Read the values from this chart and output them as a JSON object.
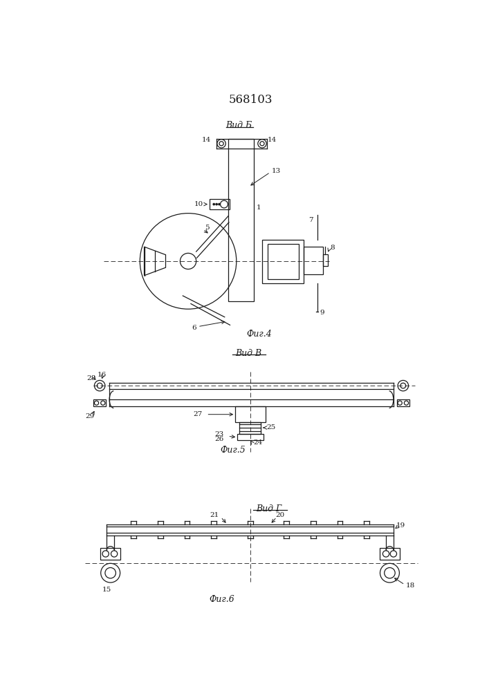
{
  "title": "568103",
  "bg_color": "#ffffff",
  "lc": "#1a1a1a",
  "fig4_label": "Вид Б",
  "fig5_label": "Вид В",
  "fig6_label": "Вид Г",
  "fig4_caption": "Фиг.4",
  "fig5_caption": "Фиг.5",
  "fig6_caption": "Фиг.6"
}
